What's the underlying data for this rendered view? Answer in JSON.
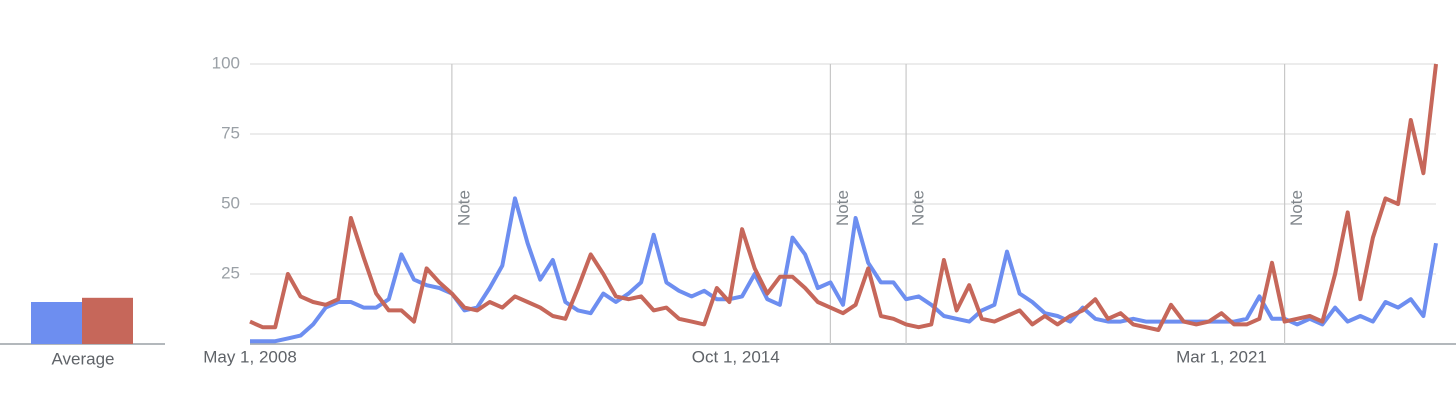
{
  "chart_data": {
    "type": "line",
    "x": [
      "2008-05-01",
      "2008-07-01",
      "2008-09-01",
      "2008-11-01",
      "2009-01-01",
      "2009-03-01",
      "2009-05-01",
      "2009-07-01",
      "2009-09-01",
      "2009-11-01",
      "2010-01-01",
      "2010-03-01",
      "2010-05-01",
      "2010-07-01",
      "2010-09-01",
      "2010-11-01",
      "2011-01-01",
      "2011-03-01",
      "2011-05-01",
      "2011-07-01",
      "2011-09-01",
      "2011-11-01",
      "2012-01-01",
      "2012-03-01",
      "2012-05-01",
      "2012-07-01",
      "2012-09-01",
      "2012-11-01",
      "2013-01-01",
      "2013-03-01",
      "2013-05-01",
      "2013-07-01",
      "2013-09-01",
      "2013-11-01",
      "2014-01-01",
      "2014-03-01",
      "2014-05-01",
      "2014-07-01",
      "2014-09-01",
      "2014-11-01",
      "2015-01-01",
      "2015-03-01",
      "2015-05-01",
      "2015-07-01",
      "2015-09-01",
      "2015-11-01",
      "2016-01-01",
      "2016-03-01",
      "2016-05-01",
      "2016-07-01",
      "2016-09-01",
      "2016-11-01",
      "2017-01-01",
      "2017-03-01",
      "2017-05-01",
      "2017-07-01",
      "2017-09-01",
      "2017-11-01",
      "2018-01-01",
      "2018-03-01",
      "2018-05-01",
      "2018-07-01",
      "2018-09-01",
      "2018-11-01",
      "2019-01-01",
      "2019-03-01",
      "2019-05-01",
      "2019-07-01",
      "2019-09-01",
      "2019-11-01",
      "2020-01-01",
      "2020-03-01",
      "2020-05-01",
      "2020-07-01",
      "2020-09-01",
      "2020-11-01",
      "2021-01-01",
      "2021-03-01",
      "2021-05-01",
      "2021-07-01",
      "2021-09-01",
      "2021-11-01",
      "2022-01-01",
      "2022-03-01",
      "2022-05-01",
      "2022-07-01",
      "2022-09-01",
      "2022-11-01",
      "2023-01-01",
      "2023-03-01",
      "2023-05-01",
      "2023-07-01",
      "2023-09-01",
      "2023-11-01",
      "2024-01-01"
    ],
    "series": [
      {
        "color": "#6d8ef0",
        "average": 15,
        "values": [
          1,
          1,
          1,
          2,
          3,
          7,
          13,
          15,
          15,
          13,
          13,
          16,
          32,
          23,
          21,
          20,
          18,
          12,
          13,
          20,
          28,
          52,
          36,
          23,
          30,
          15,
          12,
          11,
          18,
          15,
          18,
          22,
          39,
          22,
          19,
          17,
          19,
          16,
          16,
          17,
          25,
          16,
          14,
          38,
          32,
          20,
          22,
          14,
          45,
          29,
          22,
          22,
          16,
          17,
          14,
          10,
          9,
          8,
          12,
          14,
          33,
          18,
          15,
          11,
          10,
          8,
          13,
          9,
          8,
          8,
          9,
          8,
          8,
          8,
          8,
          8,
          8,
          8,
          8,
          9,
          17,
          9,
          9,
          7,
          9,
          7,
          13,
          8,
          10,
          8,
          15,
          13,
          16,
          10,
          36
        ]
      },
      {
        "color": "#c6675a",
        "average": 16.5,
        "values": [
          8,
          6,
          6,
          25,
          17,
          15,
          14,
          16,
          45,
          31,
          18,
          12,
          12,
          8,
          27,
          22,
          18,
          13,
          12,
          15,
          13,
          17,
          15,
          13,
          10,
          9,
          20,
          32,
          25,
          17,
          16,
          17,
          12,
          13,
          9,
          8,
          7,
          20,
          15,
          41,
          27,
          18,
          24,
          24,
          20,
          15,
          13,
          11,
          14,
          27,
          10,
          9,
          7,
          6,
          7,
          30,
          12,
          21,
          9,
          8,
          10,
          12,
          7,
          10,
          7,
          10,
          12,
          16,
          9,
          11,
          7,
          6,
          5,
          14,
          8,
          7,
          8,
          11,
          7,
          7,
          9,
          29,
          8,
          9,
          10,
          8,
          25,
          47,
          16,
          38,
          52,
          50,
          80,
          61,
          100
        ]
      }
    ],
    "average_label": "Average",
    "xlim": [
      "2008-05-01",
      "2024-01-01"
    ],
    "xticks": [
      {
        "value": "2008-05-01",
        "label": "May 1, 2008"
      },
      {
        "value": "2014-10-01",
        "label": "Oct 1, 2014"
      },
      {
        "value": "2021-03-01",
        "label": "Mar 1, 2021"
      }
    ],
    "ylim": [
      0,
      100
    ],
    "yticks": [
      25,
      50,
      75,
      100
    ],
    "grid": true,
    "annotations": [
      {
        "x": "2011-01-01",
        "label": "Note"
      },
      {
        "x": "2016-01-01",
        "label": "Note"
      },
      {
        "x": "2017-01-01",
        "label": "Note"
      },
      {
        "x": "2022-01-01",
        "label": "Note"
      }
    ]
  }
}
